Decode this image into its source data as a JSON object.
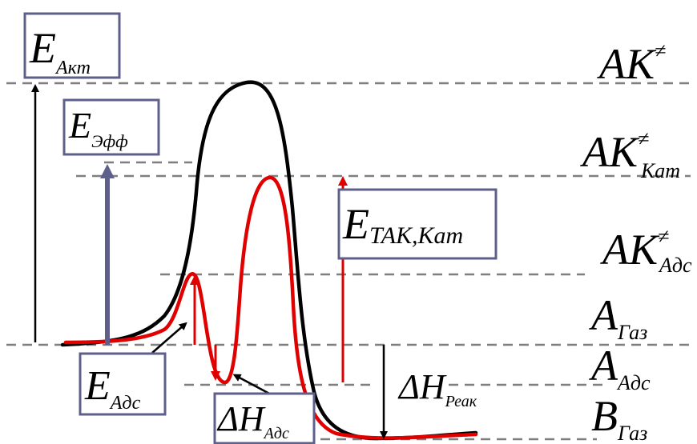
{
  "levels": {
    "ak": {
      "main": "AK",
      "sup": "≠"
    },
    "ak_kat": {
      "main": "AK",
      "sup": "≠",
      "sub": "Кат"
    },
    "ak_ads": {
      "main": "AK",
      "sup": "≠",
      "sub": "Адс"
    },
    "a_gas": {
      "main": "A",
      "sub": "Газ"
    },
    "a_ads": {
      "main": "A",
      "sub": "Адс"
    },
    "b_gas": {
      "main": "B",
      "sub": "Газ"
    }
  },
  "boxes": {
    "e_akt": {
      "main": "E",
      "sub": "Акт"
    },
    "e_eff": {
      "main": "E",
      "sub": "Эфф"
    },
    "e_tak_kat": {
      "main": "E",
      "sub": "ТАК,Кат"
    },
    "e_ads": {
      "main": "E",
      "sub": "Адс"
    },
    "dh_ads": {
      "main": "ΔH",
      "sub": "Адс"
    }
  },
  "labels": {
    "dh_reak": {
      "main": "ΔH",
      "sub": "Реак"
    }
  },
  "colors": {
    "uncatalyzed_curve": "#000000",
    "catalyzed_curve": "#e00000",
    "box_border": "#5f5f8c",
    "level_line": "#7f7f7f",
    "eff_arrow": "#5f5f8c"
  }
}
